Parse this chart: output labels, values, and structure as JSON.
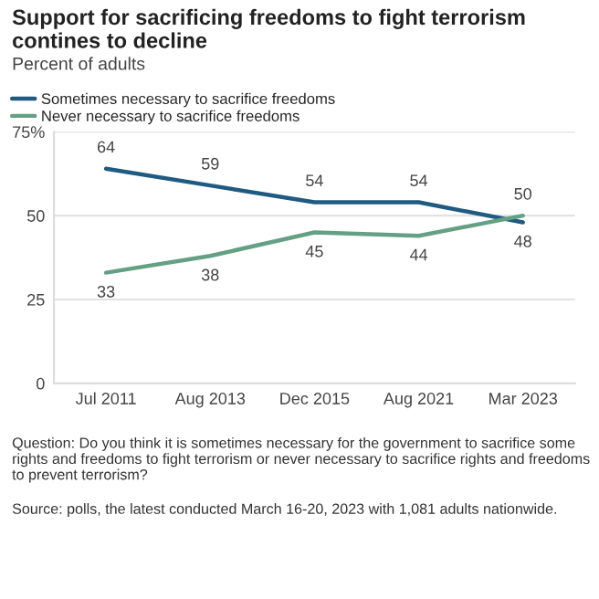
{
  "chart_data": {
    "type": "line",
    "title": "Support for sacrificing freedoms to fight terrorism contines to decline",
    "subtitle": "Percent of adults",
    "categories": [
      "Jul 2011",
      "Aug 2013",
      "Dec 2015",
      "Aug 2021",
      "Mar 2023"
    ],
    "series": [
      {
        "name": "Sometimes necessary to sacrifice freedoms",
        "color": "#1f5a80",
        "values": [
          64,
          59,
          54,
          54,
          48
        ]
      },
      {
        "name": "Never necessary to sacrifice freedoms",
        "color": "#64a084",
        "values": [
          33,
          38,
          45,
          44,
          50
        ]
      }
    ],
    "ylim": [
      0,
      75
    ],
    "yticks": [
      {
        "value": 0,
        "label": "0"
      },
      {
        "value": 25,
        "label": "25"
      },
      {
        "value": 50,
        "label": "50"
      },
      {
        "value": 75,
        "label": "75%"
      }
    ],
    "grid": "y",
    "legend": "top left",
    "data_labels": true,
    "marker": "none",
    "line_style": "solid",
    "annotations": [
      "Question: Do you think it is sometimes necessary for the government to sacrifice some rights and freedoms to fight terrorism or never necessary to sacrifice rights and freedoms to prevent terrorism?",
      "Source: polls, the latest conducted March 16-20, 2023 with 1,081 adults nationwide."
    ]
  }
}
